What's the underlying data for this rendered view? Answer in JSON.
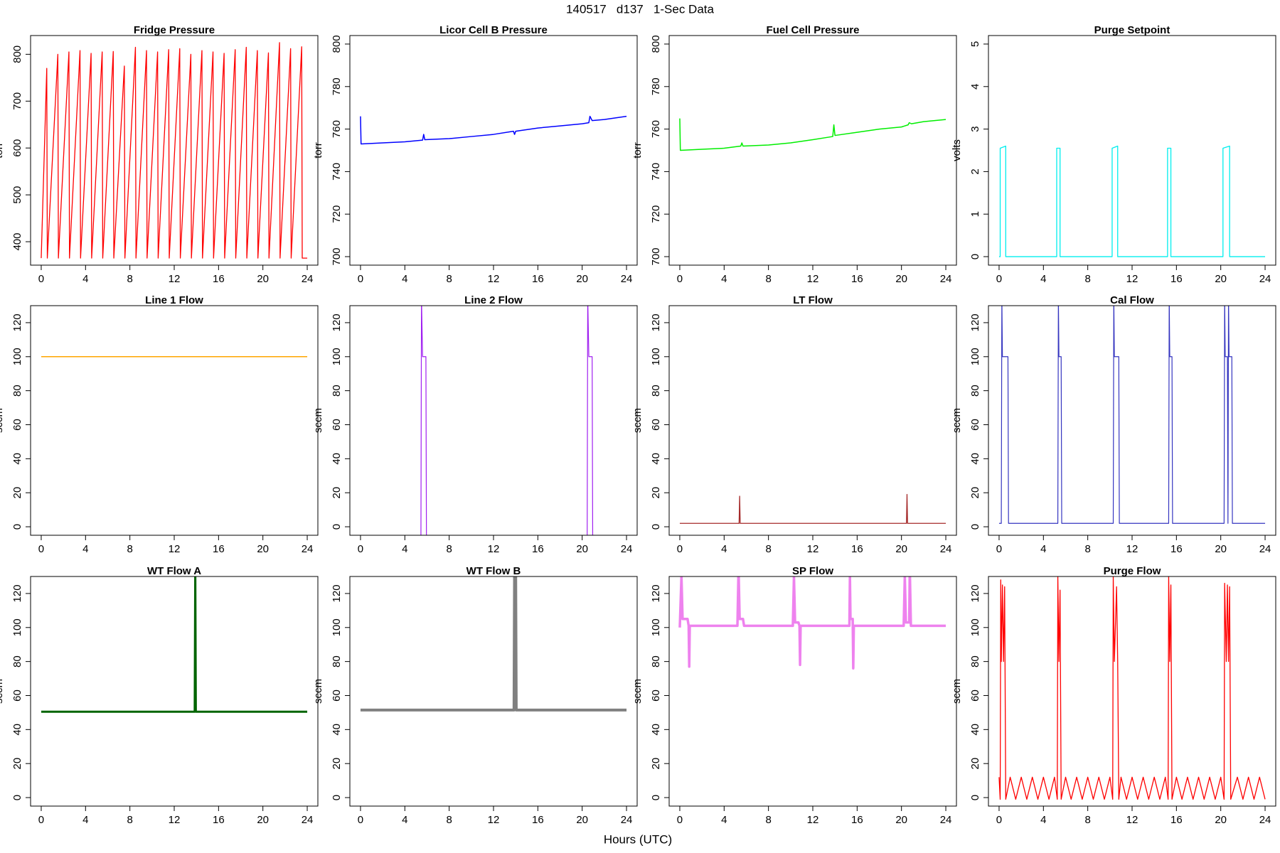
{
  "title": "140517   d137   1-Sec Data",
  "x_label": "Hours (UTC)",
  "chart_data": [
    {
      "type": "line",
      "title": "Fridge Pressure",
      "y_label": "torr",
      "color": "#ff0000",
      "x": [
        0,
        0.5,
        0.55,
        1.5,
        1.55,
        2.5,
        2.55,
        3.5,
        3.55,
        4.5,
        4.55,
        5.5,
        5.55,
        6.5,
        6.55,
        7.5,
        7.55,
        8.5,
        8.55,
        9.5,
        9.55,
        10.5,
        10.55,
        11.5,
        11.55,
        12.5,
        12.55,
        13.5,
        13.55,
        14.5,
        14.55,
        15.5,
        15.55,
        16.5,
        16.55,
        17.5,
        17.55,
        18.5,
        18.55,
        19.5,
        19.55,
        20.5,
        20.55,
        21.5,
        21.55,
        22.5,
        22.55,
        23.5,
        23.55,
        24
      ],
      "values": [
        365,
        770,
        365,
        800,
        365,
        805,
        365,
        808,
        365,
        802,
        365,
        805,
        365,
        806,
        365,
        775,
        365,
        815,
        365,
        808,
        365,
        805,
        365,
        810,
        365,
        812,
        365,
        800,
        365,
        808,
        365,
        805,
        365,
        802,
        365,
        810,
        365,
        815,
        365,
        808,
        365,
        803,
        365,
        825,
        365,
        812,
        365,
        816,
        365,
        365
      ],
      "xlim": [
        -0.96,
        24.96
      ],
      "xticks": [
        0,
        4,
        8,
        12,
        16,
        20,
        24
      ],
      "ylim": [
        350,
        840
      ],
      "yticks": [
        400,
        500,
        600,
        700,
        800
      ]
    },
    {
      "type": "line",
      "title": "Licor Cell B Pressure",
      "y_label": "torr",
      "color": "#0000ff",
      "x": [
        0,
        0.05,
        2,
        4,
        5.6,
        5.7,
        5.8,
        8,
        10,
        12,
        13.8,
        13.9,
        14,
        16,
        18,
        20,
        20.6,
        20.7,
        20.9,
        22,
        24
      ],
      "values": [
        766,
        753,
        753.5,
        754,
        754.8,
        757.5,
        755,
        755.5,
        756.5,
        757.5,
        759,
        757.5,
        759,
        760.5,
        761.5,
        762.5,
        763,
        766,
        764,
        764.5,
        766
      ],
      "xlim": [
        -0.96,
        24.96
      ],
      "xticks": [
        0,
        4,
        8,
        12,
        16,
        20,
        24
      ],
      "ylim": [
        696,
        804
      ],
      "yticks": [
        700,
        720,
        740,
        760,
        780,
        800
      ]
    },
    {
      "type": "line",
      "title": "Fuel Cell Pressure",
      "y_label": "torr",
      "color": "#00ee00",
      "x": [
        0,
        0.05,
        2,
        4,
        5.5,
        5.6,
        5.7,
        8,
        10,
        12,
        13.8,
        13.9,
        14,
        16,
        18,
        20,
        20.6,
        20.7,
        20.9,
        22,
        24
      ],
      "values": [
        765,
        750,
        750.5,
        751,
        752,
        753.5,
        752,
        752.5,
        753.5,
        755,
        756.5,
        762,
        757,
        758.5,
        760,
        761,
        762,
        763,
        762.5,
        763.5,
        764.5
      ],
      "xlim": [
        -0.96,
        24.96
      ],
      "xticks": [
        0,
        4,
        8,
        12,
        16,
        20,
        24
      ],
      "ylim": [
        696,
        804
      ],
      "yticks": [
        700,
        720,
        740,
        760,
        780,
        800
      ]
    },
    {
      "type": "line",
      "title": "Purge Setpoint",
      "y_label": "volts",
      "color": "#00eeee",
      "x": [
        0,
        0.1,
        0.1,
        0.6,
        0.6,
        5.2,
        5.2,
        5.5,
        5.5,
        10.2,
        10.2,
        10.7,
        10.7,
        15.2,
        15.2,
        15.5,
        15.5,
        20.2,
        20.2,
        20.8,
        20.8,
        24
      ],
      "values": [
        0,
        0,
        2.55,
        2.6,
        0,
        0,
        2.55,
        2.55,
        0,
        0,
        2.55,
        2.6,
        0,
        0,
        2.55,
        2.55,
        0,
        0,
        2.55,
        2.6,
        0,
        0
      ],
      "xlim": [
        -0.96,
        24.96
      ],
      "xticks": [
        0,
        4,
        8,
        12,
        16,
        20,
        24
      ],
      "ylim": [
        -0.2,
        5.2
      ],
      "yticks": [
        0,
        1,
        2,
        3,
        4,
        5
      ]
    },
    {
      "type": "line",
      "title": "Line 1 Flow",
      "y_label": "sccm",
      "color": "#ffa500",
      "x": [
        0,
        6,
        12,
        18,
        24
      ],
      "values": [
        100,
        100,
        100,
        100,
        100
      ],
      "xlim": [
        -0.96,
        24.96
      ],
      "xticks": [
        0,
        4,
        8,
        12,
        16,
        20,
        24
      ],
      "ylim": [
        -5,
        130
      ],
      "yticks": [
        0,
        20,
        40,
        60,
        80,
        100,
        120
      ]
    },
    {
      "type": "line",
      "title": "Line 2 Flow",
      "y_label": "sccm",
      "color": "#a020f0",
      "x": [
        5.45,
        5.5,
        5.6,
        5.9,
        5.95,
        20.45,
        20.5,
        20.6,
        20.9,
        20.95
      ],
      "values": [
        -10,
        135,
        100,
        100,
        -10,
        -10,
        135,
        100,
        100,
        -10
      ],
      "xlim": [
        -0.96,
        24.96
      ],
      "xticks": [
        0,
        4,
        8,
        12,
        16,
        20,
        24
      ],
      "ylim": [
        -5,
        130
      ],
      "yticks": [
        0,
        20,
        40,
        60,
        80,
        100,
        120
      ]
    },
    {
      "type": "line",
      "title": "LT Flow",
      "y_label": "sccm",
      "color": "#a52a2a",
      "x": [
        0,
        5.35,
        5.4,
        5.45,
        20.45,
        20.5,
        20.55,
        24
      ],
      "values": [
        2,
        2,
        18,
        2,
        2,
        19,
        2,
        2
      ],
      "xlim": [
        -0.96,
        24.96
      ],
      "xticks": [
        0,
        4,
        8,
        12,
        16,
        20,
        24
      ],
      "ylim": [
        -5,
        130
      ],
      "yticks": [
        0,
        20,
        40,
        60,
        80,
        100,
        120
      ]
    },
    {
      "type": "line",
      "title": "Cal Flow",
      "y_label": "sccm",
      "color": "#3535c0",
      "x": [
        0,
        0.2,
        0.25,
        0.3,
        0.8,
        0.85,
        5.3,
        5.35,
        5.4,
        5.6,
        5.65,
        10.3,
        10.35,
        10.4,
        10.8,
        10.85,
        15.3,
        15.35,
        15.4,
        15.6,
        15.65,
        20.3,
        20.35,
        20.4,
        20.6,
        20.65,
        20.7,
        20.75,
        21.0,
        21.05,
        24
      ],
      "values": [
        2,
        2,
        135,
        100,
        100,
        2,
        2,
        135,
        100,
        100,
        2,
        2,
        135,
        100,
        100,
        2,
        2,
        135,
        100,
        100,
        2,
        2,
        135,
        100,
        100,
        2,
        135,
        100,
        100,
        2,
        2
      ],
      "xlim": [
        -0.96,
        24.96
      ],
      "xticks": [
        0,
        4,
        8,
        12,
        16,
        20,
        24
      ],
      "ylim": [
        -5,
        130
      ],
      "yticks": [
        0,
        20,
        40,
        60,
        80,
        100,
        120
      ]
    },
    {
      "type": "line",
      "title": "WT Flow A",
      "y_label": "sccm",
      "color": "#006400",
      "x": [
        0,
        6,
        13.85,
        13.9,
        13.95,
        18,
        24
      ],
      "values": [
        50.5,
        50.5,
        50.5,
        135,
        50.5,
        50.5,
        50.5
      ],
      "xlim": [
        -0.96,
        24.96
      ],
      "xticks": [
        0,
        4,
        8,
        12,
        16,
        20,
        24
      ],
      "ylim": [
        -5,
        130
      ],
      "yticks": [
        0,
        20,
        40,
        60,
        80,
        100,
        120
      ]
    },
    {
      "type": "line",
      "title": "WT Flow B",
      "y_label": "sccm",
      "color": "#808080",
      "x": [
        0,
        13.85,
        13.9,
        14.0,
        14.05,
        24
      ],
      "values": [
        51.5,
        51.5,
        135,
        135,
        51.5,
        51.5
      ],
      "xlim": [
        -0.96,
        24.96
      ],
      "xticks": [
        0,
        4,
        8,
        12,
        16,
        20,
        24
      ],
      "ylim": [
        -5,
        130
      ],
      "yticks": [
        0,
        20,
        40,
        60,
        80,
        100,
        120
      ]
    },
    {
      "type": "line",
      "title": "SP Flow",
      "y_label": "sccm",
      "color": "#ee82ee",
      "x": [
        0,
        0.15,
        0.25,
        0.7,
        0.8,
        0.85,
        0.9,
        5.2,
        5.3,
        5.4,
        5.7,
        5.8,
        10.2,
        10.3,
        10.4,
        10.7,
        10.8,
        10.85,
        10.9,
        15.3,
        15.35,
        15.4,
        15.6,
        15.65,
        15.7,
        20.2,
        20.3,
        20.4,
        20.7,
        20.75,
        20.85,
        24
      ],
      "values": [
        100,
        130,
        105,
        105,
        101,
        77,
        101,
        101,
        135,
        105,
        105,
        101,
        101,
        130,
        103,
        103,
        101,
        78,
        101,
        101,
        130,
        105,
        105,
        76,
        101,
        101,
        130,
        103,
        103,
        135,
        101,
        101
      ],
      "xlim": [
        -0.96,
        24.96
      ],
      "xticks": [
        0,
        4,
        8,
        12,
        16,
        20,
        24
      ],
      "ylim": [
        -5,
        130
      ],
      "yticks": [
        0,
        20,
        40,
        60,
        80,
        100,
        120
      ]
    },
    {
      "type": "line",
      "title": "Purge Flow",
      "y_label": "sccm",
      "color": "#ff0000",
      "x": [
        0,
        0.1,
        0.15,
        0.2,
        0.3,
        0.4,
        0.5,
        0.6,
        1,
        1.5,
        2,
        2.5,
        3,
        3.5,
        4,
        4.5,
        5,
        5.25,
        5.3,
        5.4,
        5.5,
        5.6,
        6,
        6.5,
        7,
        7.5,
        8,
        8.5,
        9,
        9.5,
        10,
        10.25,
        10.3,
        10.4,
        10.6,
        10.7,
        10.8,
        11,
        11.5,
        12,
        12.5,
        13,
        13.5,
        14,
        14.5,
        15,
        15.25,
        15.3,
        15.4,
        15.5,
        15.6,
        16,
        16.5,
        17,
        17.5,
        18,
        18.5,
        19,
        19.5,
        20,
        20.3,
        20.35,
        20.5,
        20.6,
        20.7,
        20.8,
        20.9,
        21.5,
        22,
        22.5,
        23,
        23.5,
        24
      ],
      "values": [
        12,
        -1,
        128,
        80,
        125,
        80,
        124,
        -1,
        12,
        -1,
        12,
        -1,
        12,
        -1,
        12,
        -1,
        12,
        -1,
        130,
        80,
        122,
        -1,
        12,
        -1,
        12,
        -1,
        12,
        -1,
        12,
        -1,
        12,
        -1,
        130,
        80,
        124,
        80,
        -1,
        12,
        -1,
        12,
        -1,
        12,
        -1,
        12,
        -1,
        12,
        -1,
        130,
        80,
        125,
        -1,
        12,
        -1,
        12,
        -1,
        12,
        -1,
        12,
        -1,
        12,
        -1,
        126,
        80,
        125,
        80,
        124,
        -1,
        12,
        -1,
        12,
        -1,
        12,
        -1
      ],
      "xlim": [
        -0.96,
        24.96
      ],
      "xticks": [
        0,
        4,
        8,
        12,
        16,
        20,
        24
      ],
      "ylim": [
        -5,
        130
      ],
      "yticks": [
        0,
        20,
        40,
        60,
        80,
        100,
        120
      ]
    }
  ]
}
